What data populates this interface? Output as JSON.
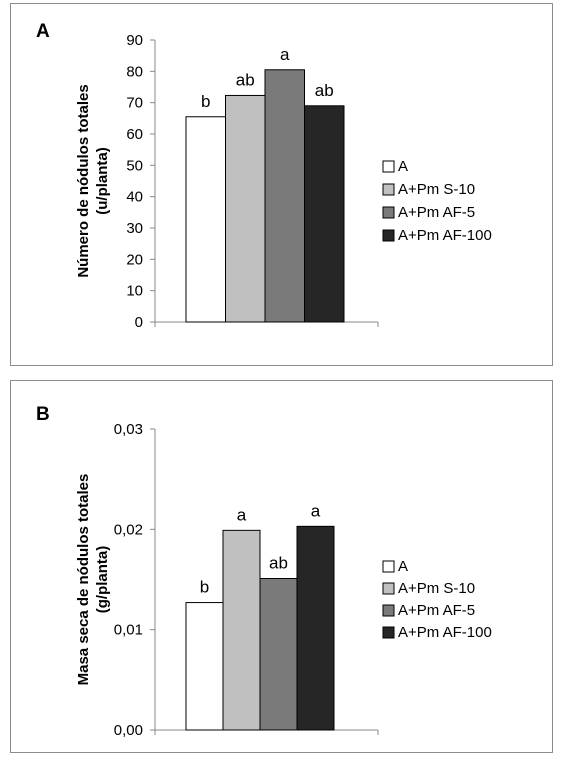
{
  "chart_data": [
    {
      "panel": "A",
      "type": "bar",
      "categories": [
        "A",
        "A+Pm S-10",
        "A+Pm AF-5",
        "A+Pm AF-100"
      ],
      "values": [
        65.5,
        72.3,
        80.5,
        69.0
      ],
      "significance": [
        "b",
        "ab",
        "a",
        "ab"
      ],
      "ylabel_lines": [
        "Número de nódulos totales",
        "(u/planta)"
      ],
      "yticks": [
        "0",
        "10",
        "20",
        "30",
        "40",
        "50",
        "60",
        "70",
        "80",
        "90"
      ],
      "ylim": [
        0,
        90
      ],
      "colors": [
        "#ffffff",
        "#c0c0c0",
        "#7a7a7a",
        "#262626"
      ],
      "legend": [
        "A",
        "A+Pm S-10",
        "A+Pm AF-5",
        "A+Pm AF-100"
      ],
      "legend_position": "right",
      "grid": false
    },
    {
      "panel": "B",
      "type": "bar",
      "categories": [
        "A",
        "A+Pm S-10",
        "A+Pm AF-5",
        "A+Pm AF-100"
      ],
      "values": [
        0.0127,
        0.0199,
        0.0151,
        0.0203
      ],
      "significance": [
        "b",
        "a",
        "ab",
        "a"
      ],
      "ylabel_lines": [
        "Masa seca de nódulos totales",
        "(g/planta)"
      ],
      "yticks": [
        "0,00",
        "0,01",
        "0,02",
        "0,03"
      ],
      "ylim": [
        0,
        0.03
      ],
      "colors": [
        "#ffffff",
        "#c0c0c0",
        "#7a7a7a",
        "#262626"
      ],
      "legend": [
        "A",
        "A+Pm S-10",
        "A+Pm AF-5",
        "A+Pm AF-100"
      ],
      "legend_position": "right",
      "grid": false
    }
  ]
}
